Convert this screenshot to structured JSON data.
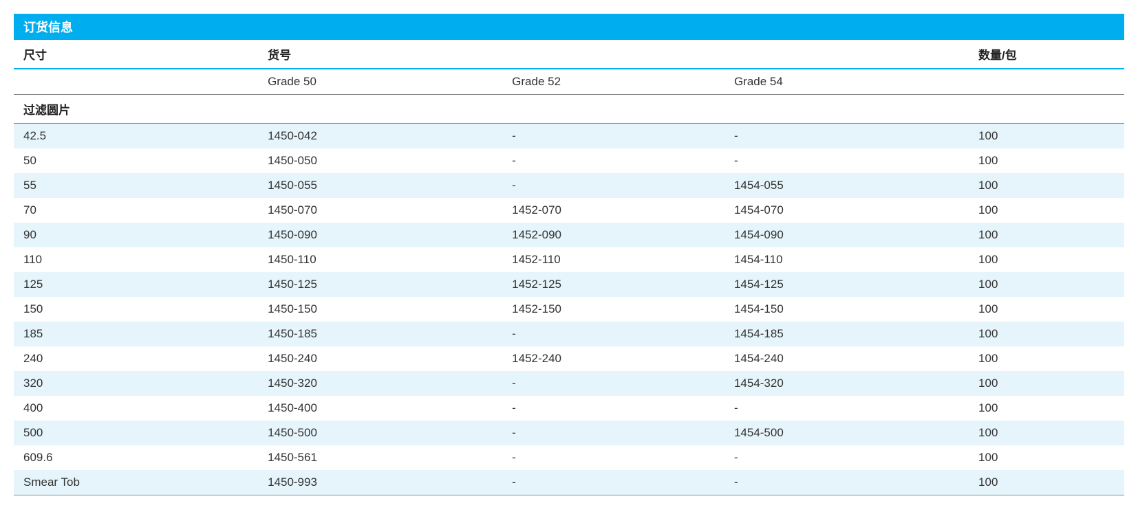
{
  "colors": {
    "header_bg": "#00aeef",
    "header_text": "#ffffff",
    "row_even_bg": "#e6f5fb",
    "row_odd_bg": "#ffffff",
    "border_accent": "#00aeef",
    "border_grey": "#888888",
    "text": "#333333"
  },
  "column_widths_pct": [
    22,
    22,
    20,
    22,
    14
  ],
  "title": "订货信息",
  "headers": {
    "size": "尺寸",
    "catalog": "货号",
    "qty": "数量/包"
  },
  "sub_headers": {
    "grade50": "Grade 50",
    "grade52": "Grade 52",
    "grade54": "Grade 54"
  },
  "section_label": "过滤圆片",
  "rows": [
    {
      "size": "42.5",
      "g50": "1450-042",
      "g52": "-",
      "g54": "-",
      "qty": "100"
    },
    {
      "size": "50",
      "g50": "1450-050",
      "g52": "-",
      "g54": "-",
      "qty": "100"
    },
    {
      "size": "55",
      "g50": "1450-055",
      "g52": "-",
      "g54": "1454-055",
      "qty": "100"
    },
    {
      "size": "70",
      "g50": "1450-070",
      "g52": "1452-070",
      "g54": "1454-070",
      "qty": "100"
    },
    {
      "size": "90",
      "g50": "1450-090",
      "g52": "1452-090",
      "g54": "1454-090",
      "qty": "100"
    },
    {
      "size": "110",
      "g50": "1450-110",
      "g52": "1452-110",
      "g54": "1454-110",
      "qty": "100"
    },
    {
      "size": "125",
      "g50": "1450-125",
      "g52": "1452-125",
      "g54": "1454-125",
      "qty": "100"
    },
    {
      "size": "150",
      "g50": "1450-150",
      "g52": "1452-150",
      "g54": "1454-150",
      "qty": "100"
    },
    {
      "size": "185",
      "g50": "1450-185",
      "g52": "-",
      "g54": "1454-185",
      "qty": "100"
    },
    {
      "size": "240",
      "g50": "1450-240",
      "g52": "1452-240",
      "g54": "1454-240",
      "qty": "100"
    },
    {
      "size": "320",
      "g50": "1450-320",
      "g52": "-",
      "g54": "1454-320",
      "qty": "100"
    },
    {
      "size": "400",
      "g50": "1450-400",
      "g52": "-",
      "g54": "-",
      "qty": "100"
    },
    {
      "size": "500",
      "g50": "1450-500",
      "g52": "-",
      "g54": "1454-500",
      "qty": "100"
    },
    {
      "size": "609.6",
      "g50": "1450-561",
      "g52": "-",
      "g54": "-",
      "qty": "100"
    },
    {
      "size": "Smear Tob",
      "g50": "1450-993",
      "g52": "-",
      "g54": "-",
      "qty": "100"
    }
  ]
}
